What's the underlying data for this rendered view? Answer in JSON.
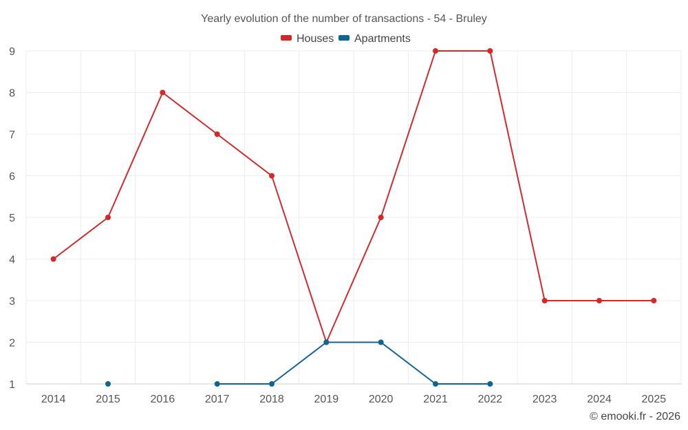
{
  "chart_data": {
    "type": "line",
    "title": "Yearly evolution of the number of transactions - 54 - Bruley",
    "categories": [
      "2014",
      "2015",
      "2016",
      "2017",
      "2018",
      "2019",
      "2020",
      "2021",
      "2022",
      "2023",
      "2024",
      "2025"
    ],
    "series": [
      {
        "name": "Houses",
        "color": "#d62728",
        "values": [
          4,
          5,
          8,
          7,
          6,
          2,
          5,
          9,
          9,
          3,
          3,
          3
        ]
      },
      {
        "name": "Apartments",
        "color": "#0f6496",
        "values": [
          null,
          1,
          null,
          1,
          1,
          2,
          2,
          1,
          1,
          null,
          null,
          null
        ]
      }
    ],
    "ylim": [
      1,
      9
    ],
    "yticks": [
      1,
      2,
      3,
      4,
      5,
      6,
      7,
      8,
      9
    ],
    "xlabel": "",
    "ylabel": "",
    "grid": true,
    "legend": "top-center"
  },
  "credit": "© emooki.fr - 2026"
}
